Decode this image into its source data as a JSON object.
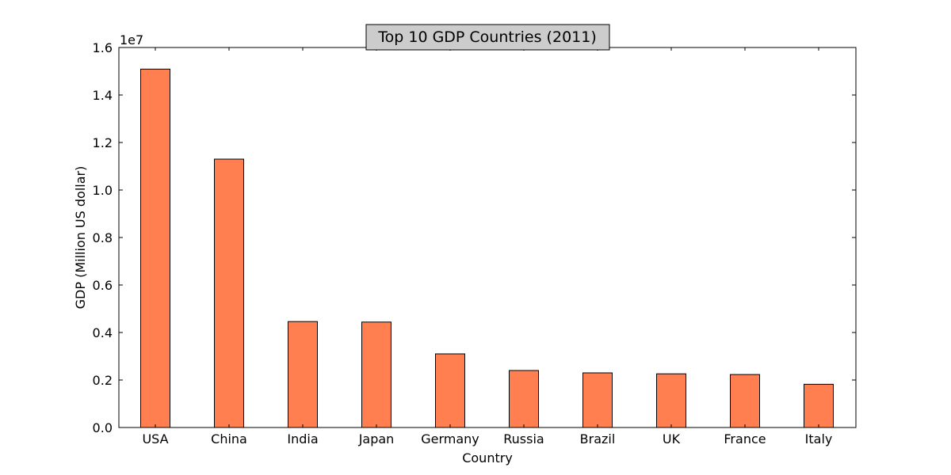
{
  "chart_data": {
    "type": "bar",
    "title": "Top 10 GDP Countries (2011)",
    "xlabel": "Country",
    "ylabel": "GDP (Million US dollar)",
    "y_offset_label": "1e7",
    "categories": [
      "USA",
      "China",
      "India",
      "Japan",
      "Germany",
      "Russia",
      "Brazil",
      "UK",
      "France",
      "Italy"
    ],
    "values": [
      15090000,
      11300000,
      4460000,
      4440000,
      3100000,
      2400000,
      2300000,
      2260000,
      2230000,
      1820000
    ],
    "ylim": [
      0,
      16000000
    ],
    "y_ticks": [
      {
        "value": 0,
        "label": "0.0"
      },
      {
        "value": 2000000,
        "label": "0.2"
      },
      {
        "value": 4000000,
        "label": "0.4"
      },
      {
        "value": 6000000,
        "label": "0.6"
      },
      {
        "value": 8000000,
        "label": "0.8"
      },
      {
        "value": 10000000,
        "label": "1.0"
      },
      {
        "value": 12000000,
        "label": "1.2"
      },
      {
        "value": 14000000,
        "label": "1.4"
      },
      {
        "value": 16000000,
        "label": "1.6"
      }
    ],
    "grid": false,
    "bar_color": "#ff7f50",
    "bar_edge_color": "#000000",
    "title_box_color": "#cccccc"
  }
}
